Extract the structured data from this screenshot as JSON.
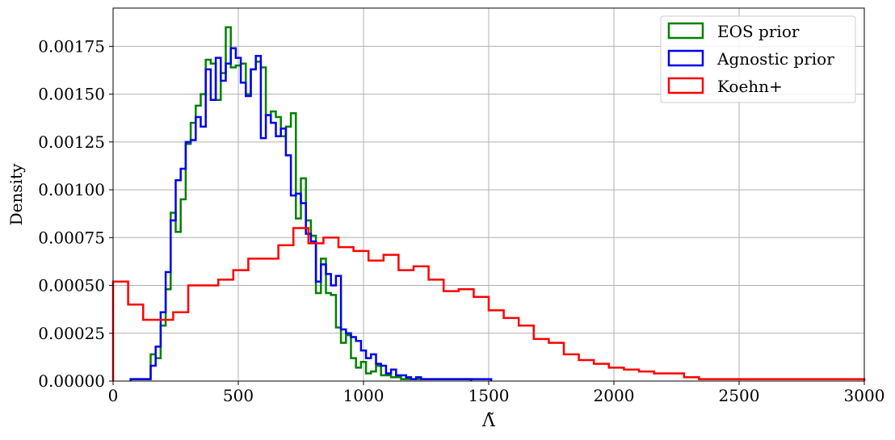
{
  "chart_data": {
    "type": "histogram",
    "xlabel": "Λ̃",
    "ylabel": "Density",
    "xlim": [
      0,
      3000
    ],
    "ylim": [
      0,
      0.00195
    ],
    "grid": true,
    "legend_position": "top-right",
    "x_ticks": [
      0,
      500,
      1000,
      1500,
      2000,
      2500,
      3000
    ],
    "x_tick_labels": [
      "0",
      "500",
      "1000",
      "1500",
      "2000",
      "2500",
      "3000"
    ],
    "y_ticks": [
      0,
      0.00025,
      0.0005,
      0.00075,
      0.001,
      0.00125,
      0.0015,
      0.00175
    ],
    "y_tick_labels": [
      "0.00000",
      "0.00025",
      "0.00050",
      "0.00075",
      "0.00100",
      "0.00125",
      "0.00150",
      "0.00175"
    ],
    "series": [
      {
        "name": "EOS prior",
        "color": "#008000",
        "bin_edges": [
          70,
          90,
          110,
          130,
          150,
          170,
          190,
          210,
          230,
          250,
          270,
          290,
          310,
          330,
          350,
          370,
          390,
          410,
          430,
          450,
          470,
          490,
          510,
          530,
          550,
          570,
          590,
          610,
          630,
          650,
          670,
          690,
          710,
          730,
          750,
          770,
          790,
          810,
          830,
          850,
          870,
          890,
          910,
          930,
          950,
          970,
          990,
          1010,
          1030,
          1050,
          1070,
          1090,
          1110,
          1130,
          1150,
          1170,
          1190,
          1210,
          1230,
          1250,
          1270,
          1290,
          1310,
          1330,
          1350,
          1370,
          1390,
          1410,
          1430
        ],
        "values": [
          1e-05,
          1e-05,
          1e-05,
          1e-05,
          0.00014,
          0.00012,
          0.00029,
          0.00048,
          0.00088,
          0.00078,
          0.00095,
          0.00124,
          0.00135,
          0.00144,
          0.0015,
          0.00168,
          0.00166,
          0.00147,
          0.00161,
          0.00185,
          0.00164,
          0.00165,
          0.00166,
          0.0015,
          0.00163,
          0.00167,
          0.00164,
          0.00139,
          0.00141,
          0.00138,
          0.00128,
          0.00133,
          0.0014,
          0.00085,
          0.00106,
          0.00084,
          0.00076,
          0.00046,
          0.00064,
          0.00046,
          0.00045,
          0.00028,
          0.0002,
          0.00024,
          0.00012,
          7e-05,
          0.0001,
          4e-05,
          5e-05,
          8e-05,
          3e-05,
          3e-05,
          2e-05,
          2e-05,
          1e-05,
          1e-05,
          1e-05,
          1e-05,
          1e-05,
          1e-05,
          1e-05,
          1e-05,
          1e-05,
          1e-05,
          1e-05,
          1e-05,
          1e-05,
          1e-05
        ]
      },
      {
        "name": "Agnostic prior",
        "color": "#0000ee",
        "bin_edges": [
          70,
          90,
          110,
          130,
          150,
          170,
          190,
          210,
          230,
          250,
          270,
          290,
          310,
          330,
          350,
          370,
          390,
          410,
          430,
          450,
          470,
          490,
          510,
          530,
          550,
          570,
          590,
          610,
          630,
          650,
          670,
          690,
          710,
          730,
          750,
          770,
          790,
          810,
          830,
          850,
          870,
          890,
          910,
          930,
          950,
          970,
          990,
          1010,
          1030,
          1050,
          1070,
          1090,
          1110,
          1130,
          1150,
          1170,
          1190,
          1210,
          1230,
          1250,
          1270,
          1290,
          1310,
          1330,
          1350,
          1370,
          1390,
          1410,
          1430,
          1450,
          1470,
          1490,
          1510
        ],
        "values": [
          1e-05,
          1e-05,
          1e-05,
          1e-05,
          8e-05,
          0.00018,
          0.00036,
          0.00057,
          0.00084,
          0.00105,
          0.00111,
          0.00125,
          0.00126,
          0.00138,
          0.00133,
          0.00163,
          0.00147,
          0.00169,
          0.00157,
          0.00166,
          0.00174,
          0.00169,
          0.00156,
          0.00149,
          0.00163,
          0.0017,
          0.00127,
          0.00139,
          0.00135,
          0.00128,
          0.00132,
          0.00118,
          0.00097,
          0.00098,
          0.00093,
          0.00077,
          0.00073,
          0.00052,
          0.00061,
          0.00056,
          0.0005,
          0.00055,
          0.00027,
          0.00025,
          0.00023,
          0.00021,
          0.00016,
          0.00012,
          0.00014,
          9e-05,
          8e-05,
          4e-05,
          6e-05,
          3e-05,
          3e-05,
          2e-05,
          1e-05,
          2e-05,
          1e-05,
          1e-05,
          1e-05,
          1e-05,
          1e-05,
          1e-05,
          1e-05,
          1e-05,
          1e-05,
          1e-05,
          1e-05,
          1e-05,
          1e-05,
          1e-05
        ]
      },
      {
        "name": "Koehn+",
        "color": "#ff0000",
        "bin_edges": [
          0,
          60,
          120,
          180,
          240,
          300,
          360,
          420,
          480,
          540,
          600,
          660,
          720,
          780,
          840,
          900,
          960,
          1020,
          1080,
          1140,
          1200,
          1260,
          1320,
          1380,
          1440,
          1500,
          1560,
          1620,
          1680,
          1740,
          1800,
          1860,
          1920,
          1980,
          2040,
          2100,
          2160,
          2220,
          2280,
          2340,
          2400,
          2460,
          2520,
          2580,
          2640,
          2700,
          2760,
          2820,
          2880,
          2940,
          3000
        ],
        "values": [
          0.00052,
          0.0004,
          0.00032,
          0.00032,
          0.00036,
          0.0005,
          0.0005,
          0.00053,
          0.00058,
          0.00064,
          0.00064,
          0.00071,
          0.0008,
          0.00072,
          0.00075,
          0.0007,
          0.00068,
          0.00063,
          0.00066,
          0.00058,
          0.0006,
          0.00053,
          0.00047,
          0.00048,
          0.00044,
          0.00037,
          0.00033,
          0.00029,
          0.00022,
          0.0002,
          0.00014,
          0.00011,
          9e-05,
          7e-05,
          6e-05,
          5e-05,
          4e-05,
          4e-05,
          2e-05,
          1e-05,
          1e-05,
          1e-05,
          1e-05,
          1e-05,
          1e-05,
          1e-05,
          1e-05,
          1e-05,
          1e-05,
          1e-05
        ]
      }
    ]
  }
}
